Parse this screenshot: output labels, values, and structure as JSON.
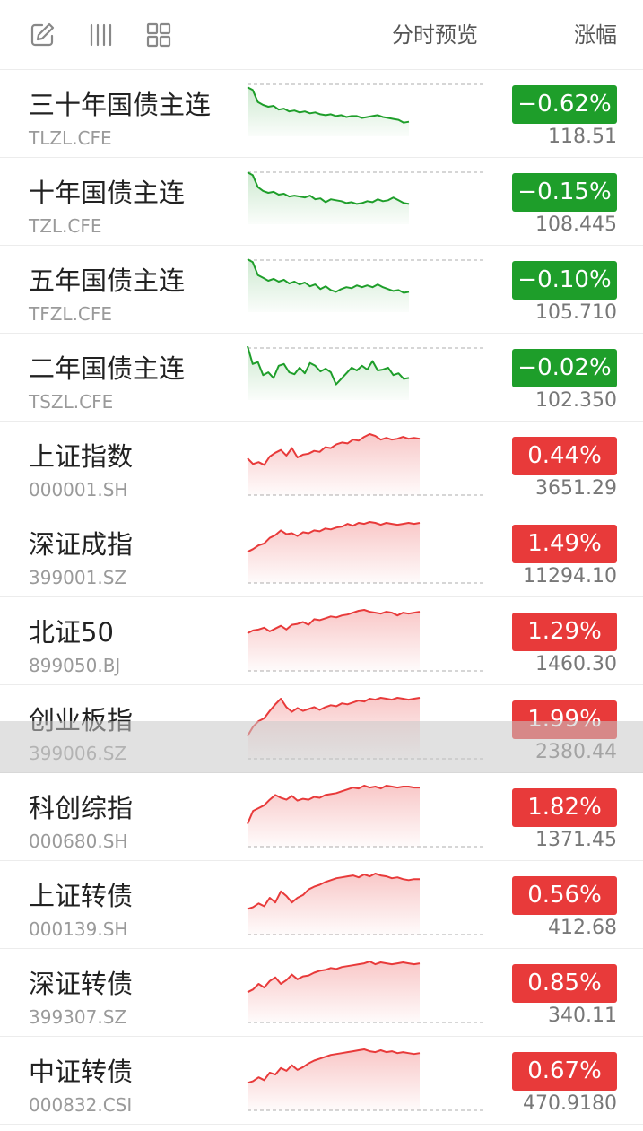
{
  "header": {
    "icons": [
      "edit-icon",
      "columns-icon",
      "grid-icon"
    ],
    "preview_label": "分时预览",
    "change_label": "涨幅"
  },
  "colors": {
    "down": "#1e9e2a",
    "up": "#e83a3a"
  },
  "rows": [
    {
      "name": "三十年国债主连",
      "code": "TLZL.CFE",
      "change": "−0.62%",
      "price": "118.51",
      "dir": "down",
      "trend": [
        0.1,
        0.16,
        0.42,
        0.48,
        0.52,
        0.5,
        0.58,
        0.56,
        0.62,
        0.6,
        0.64,
        0.62,
        0.66,
        0.64,
        0.68,
        0.7,
        0.68,
        0.72,
        0.7,
        0.74,
        0.72,
        0.72,
        0.76,
        0.74,
        0.72,
        0.7,
        0.74,
        0.76,
        0.78,
        0.8,
        0.86,
        0.84
      ]
    },
    {
      "name": "十年国债主连",
      "code": "TZL.CFE",
      "change": "−0.15%",
      "price": "108.445",
      "dir": "down",
      "trend": [
        0.04,
        0.1,
        0.36,
        0.44,
        0.48,
        0.46,
        0.52,
        0.5,
        0.56,
        0.54,
        0.56,
        0.58,
        0.54,
        0.62,
        0.6,
        0.68,
        0.62,
        0.64,
        0.66,
        0.7,
        0.68,
        0.72,
        0.7,
        0.66,
        0.68,
        0.62,
        0.66,
        0.64,
        0.58,
        0.64,
        0.7,
        0.72
      ]
    },
    {
      "name": "五年国债主连",
      "code": "TFZL.CFE",
      "change": "−0.10%",
      "price": "105.710",
      "dir": "down",
      "trend": [
        0.02,
        0.08,
        0.36,
        0.42,
        0.48,
        0.44,
        0.5,
        0.46,
        0.54,
        0.5,
        0.56,
        0.52,
        0.6,
        0.56,
        0.66,
        0.6,
        0.68,
        0.72,
        0.66,
        0.62,
        0.64,
        0.58,
        0.62,
        0.58,
        0.62,
        0.56,
        0.62,
        0.66,
        0.7,
        0.68,
        0.74,
        0.72
      ]
    },
    {
      "name": "二年国债主连",
      "code": "TSZL.CFE",
      "change": "−0.02%",
      "price": "102.350",
      "dir": "down",
      "trend": [
        0.0,
        0.38,
        0.34,
        0.62,
        0.56,
        0.68,
        0.42,
        0.38,
        0.56,
        0.6,
        0.46,
        0.58,
        0.36,
        0.42,
        0.54,
        0.48,
        0.56,
        0.82,
        0.7,
        0.58,
        0.46,
        0.52,
        0.42,
        0.5,
        0.32,
        0.52,
        0.5,
        0.46,
        0.62,
        0.58,
        0.7,
        0.68
      ]
    },
    {
      "name": "上证指数",
      "code": "000001.SH",
      "change": "0.44%",
      "price": "3651.29",
      "dir": "up",
      "trend": [
        0.52,
        0.64,
        0.6,
        0.66,
        0.48,
        0.4,
        0.34,
        0.46,
        0.3,
        0.5,
        0.44,
        0.42,
        0.36,
        0.38,
        0.28,
        0.3,
        0.22,
        0.18,
        0.2,
        0.12,
        0.14,
        0.06,
        0.0,
        0.04,
        0.12,
        0.08,
        0.12,
        0.1,
        0.06,
        0.1,
        0.08,
        0.1
      ]
    },
    {
      "name": "深证成指",
      "code": "399001.SZ",
      "change": "1.49%",
      "price": "11294.10",
      "dir": "up",
      "trend": [
        0.64,
        0.58,
        0.5,
        0.46,
        0.34,
        0.28,
        0.18,
        0.26,
        0.24,
        0.3,
        0.22,
        0.24,
        0.18,
        0.2,
        0.14,
        0.16,
        0.12,
        0.1,
        0.04,
        0.08,
        0.02,
        0.04,
        0.0,
        0.02,
        0.06,
        0.02,
        0.04,
        0.06,
        0.04,
        0.02,
        0.04,
        0.02
      ]
    },
    {
      "name": "北证50",
      "code": "899050.BJ",
      "change": "1.29%",
      "price": "1460.30",
      "dir": "up",
      "trend": [
        0.5,
        0.44,
        0.42,
        0.38,
        0.46,
        0.4,
        0.34,
        0.42,
        0.32,
        0.3,
        0.26,
        0.32,
        0.2,
        0.22,
        0.18,
        0.14,
        0.16,
        0.12,
        0.1,
        0.06,
        0.02,
        0.0,
        0.04,
        0.06,
        0.08,
        0.04,
        0.06,
        0.12,
        0.06,
        0.08,
        0.06,
        0.04
      ]
    },
    {
      "name": "创业板指",
      "code": "399006.SZ",
      "change": "1.99%",
      "price": "2380.44",
      "dir": "up",
      "trend": [
        0.82,
        0.62,
        0.5,
        0.44,
        0.28,
        0.14,
        0.02,
        0.2,
        0.3,
        0.22,
        0.28,
        0.24,
        0.2,
        0.26,
        0.2,
        0.16,
        0.18,
        0.12,
        0.14,
        0.1,
        0.06,
        0.08,
        0.02,
        0.04,
        0.0,
        0.02,
        0.04,
        0.0,
        0.02,
        0.04,
        0.02,
        0.0
      ]
    },
    {
      "name": "科创综指",
      "code": "000680.SH",
      "change": "1.82%",
      "price": "1371.45",
      "dir": "up",
      "trend": [
        0.82,
        0.54,
        0.48,
        0.42,
        0.3,
        0.2,
        0.26,
        0.3,
        0.22,
        0.32,
        0.28,
        0.3,
        0.24,
        0.26,
        0.2,
        0.18,
        0.16,
        0.12,
        0.08,
        0.04,
        0.06,
        0.0,
        0.04,
        0.02,
        0.06,
        0.0,
        0.02,
        0.04,
        0.02,
        0.02,
        0.04,
        0.04
      ]
    },
    {
      "name": "上证转债",
      "code": "000139.SH",
      "change": "0.56%",
      "price": "412.68",
      "dir": "up",
      "trend": [
        0.76,
        0.72,
        0.64,
        0.7,
        0.52,
        0.62,
        0.38,
        0.48,
        0.62,
        0.52,
        0.46,
        0.34,
        0.28,
        0.24,
        0.18,
        0.14,
        0.1,
        0.08,
        0.06,
        0.04,
        0.08,
        0.02,
        0.06,
        0.0,
        0.04,
        0.06,
        0.1,
        0.08,
        0.12,
        0.14,
        0.12,
        0.12
      ]
    },
    {
      "name": "深证转债",
      "code": "399307.SZ",
      "change": "0.85%",
      "price": "340.11",
      "dir": "up",
      "trend": [
        0.66,
        0.6,
        0.48,
        0.56,
        0.42,
        0.34,
        0.48,
        0.4,
        0.28,
        0.38,
        0.32,
        0.3,
        0.24,
        0.2,
        0.18,
        0.14,
        0.16,
        0.12,
        0.1,
        0.08,
        0.06,
        0.04,
        0.0,
        0.06,
        0.02,
        0.04,
        0.06,
        0.04,
        0.02,
        0.04,
        0.06,
        0.04
      ]
    },
    {
      "name": "中证转债",
      "code": "000832.CSI",
      "change": "0.67%",
      "price": "470.9180",
      "dir": "up",
      "trend": [
        0.72,
        0.68,
        0.6,
        0.66,
        0.5,
        0.54,
        0.4,
        0.46,
        0.34,
        0.44,
        0.38,
        0.3,
        0.24,
        0.2,
        0.16,
        0.12,
        0.1,
        0.08,
        0.06,
        0.04,
        0.02,
        0.0,
        0.04,
        0.06,
        0.02,
        0.06,
        0.04,
        0.08,
        0.06,
        0.08,
        0.1,
        0.08
      ]
    }
  ]
}
